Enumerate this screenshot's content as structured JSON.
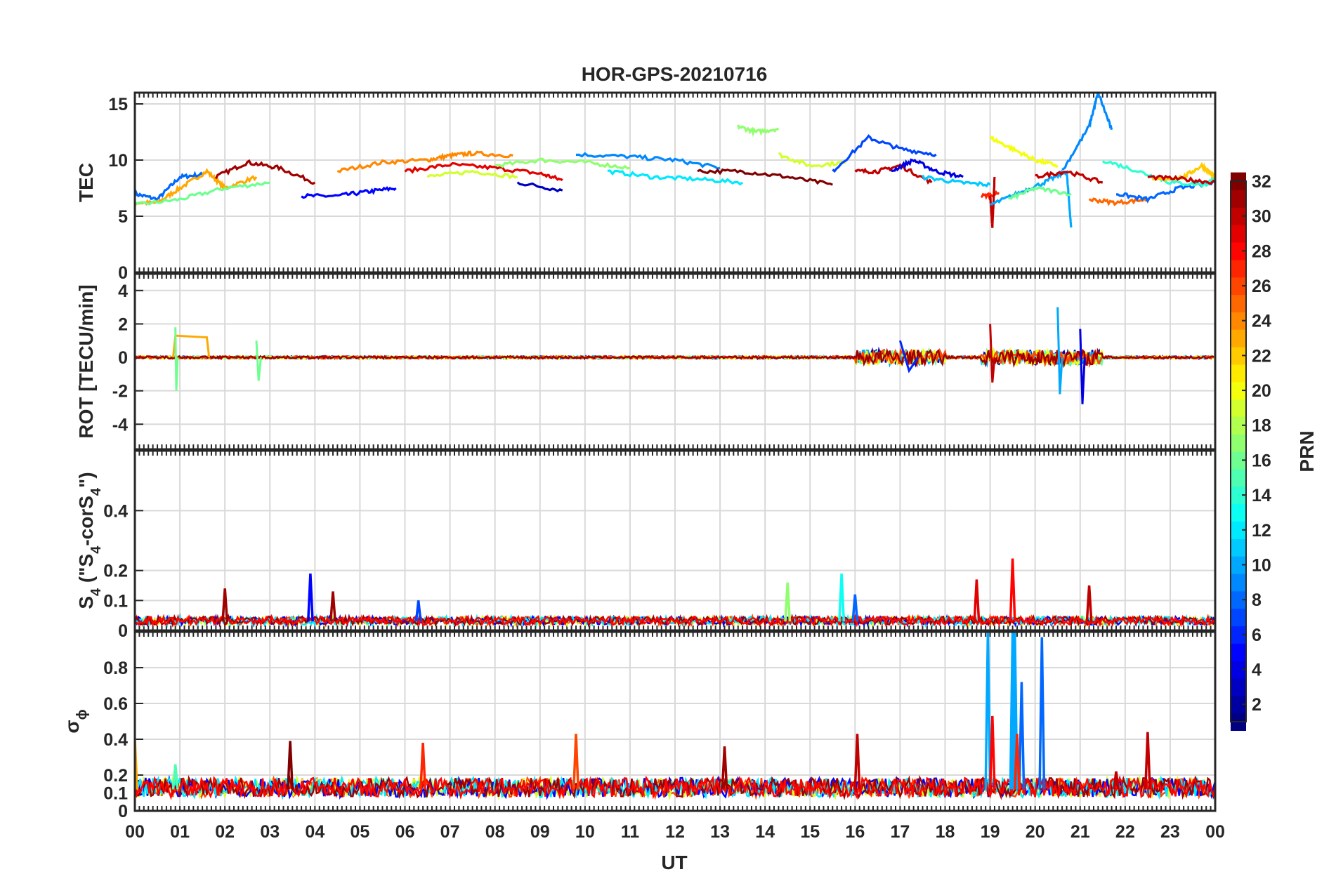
{
  "chart_data": {
    "type": "line",
    "title": "HOR-GPS-20210716",
    "xlabel": "UT",
    "x_ticks": [
      "00",
      "01",
      "02",
      "03",
      "04",
      "05",
      "06",
      "07",
      "08",
      "09",
      "10",
      "11",
      "12",
      "13",
      "14",
      "15",
      "16",
      "17",
      "18",
      "19",
      "20",
      "21",
      "22",
      "23",
      "00"
    ],
    "xlim": [
      0,
      24
    ],
    "grid": true,
    "colorbar": {
      "label": "PRN",
      "range": [
        1,
        32
      ],
      "ticks": [
        "2",
        "4",
        "6",
        "8",
        "10",
        "12",
        "14",
        "16",
        "18",
        "20",
        "22",
        "24",
        "26",
        "28",
        "30",
        "32"
      ],
      "colormap": "jet"
    },
    "panels": [
      {
        "id": "tec",
        "ylabel": "TEC",
        "ylim": [
          0,
          16
        ],
        "yticks": [
          0,
          5,
          10,
          15
        ],
        "ytick_labels": [
          "0",
          "5",
          "10",
          "15"
        ]
      },
      {
        "id": "rot",
        "ylabel": "ROT [TECU/min]",
        "ylim": [
          -5.5,
          5
        ],
        "yticks": [
          -4,
          -2,
          0,
          2,
          4
        ],
        "ytick_labels": [
          "-4",
          "-2",
          "0",
          "2",
          "4"
        ]
      },
      {
        "id": "s4",
        "ylabel_parts": [
          "S",
          "4",
          " (\"S",
          "4",
          "-corS",
          "4",
          "\")"
        ],
        "ylim": [
          0,
          0.6
        ],
        "yticks": [
          0,
          0.1,
          0.2,
          0.4
        ],
        "ytick_labels": [
          "0",
          "0.1",
          "0.2",
          "0.4"
        ]
      },
      {
        "id": "sigma",
        "ylabel_parts": [
          "σ",
          "ϕ"
        ],
        "ylim": [
          0,
          1
        ],
        "yticks": [
          0,
          0.1,
          0.2,
          0.4,
          0.6,
          0.8
        ],
        "ytick_labels": [
          "0",
          "0.1",
          "0.2",
          "0.4",
          "0.6",
          "0.8"
        ]
      }
    ],
    "tec_series": [
      {
        "prn": 8,
        "x": [
          0,
          0.5,
          1,
          1.5
        ],
        "y": [
          7,
          6.5,
          8.5,
          8.7
        ]
      },
      {
        "prn": 23,
        "x": [
          0,
          0.5,
          1,
          1.6,
          2,
          2.7
        ],
        "y": [
          6.2,
          6.2,
          7.5,
          9,
          7.5,
          8.5
        ]
      },
      {
        "prn": 16,
        "x": [
          0,
          1,
          2,
          3
        ],
        "y": [
          6,
          6.5,
          7.5,
          8
        ]
      },
      {
        "prn": 31,
        "x": [
          1.8,
          2.5,
          3.2,
          4
        ],
        "y": [
          8.5,
          9.8,
          9.3,
          8
        ]
      },
      {
        "prn": 5,
        "x": [
          3.7,
          4.5,
          5.2,
          5.8
        ],
        "y": [
          6.8,
          6.8,
          7.2,
          7.5
        ]
      },
      {
        "prn": 24,
        "x": [
          4.5,
          5.5,
          6.5,
          7,
          7.5,
          8.4
        ],
        "y": [
          9,
          9.8,
          10,
          10.4,
          10.6,
          10.4
        ]
      },
      {
        "prn": 19,
        "x": [
          6.5,
          7.5,
          8.5
        ],
        "y": [
          8.5,
          9,
          8.5
        ]
      },
      {
        "prn": 29,
        "x": [
          6,
          7,
          8,
          9,
          9.5
        ],
        "y": [
          9,
          9.6,
          9.3,
          8.8,
          8.2
        ]
      },
      {
        "prn": 3,
        "x": [
          8.5,
          9.5
        ],
        "y": [
          8,
          7.3
        ]
      },
      {
        "prn": 9,
        "x": [
          9.8,
          11,
          12,
          13
        ],
        "y": [
          10.5,
          10.3,
          10,
          9.3
        ]
      },
      {
        "prn": 17,
        "x": [
          8,
          9,
          10,
          11
        ],
        "y": [
          9.5,
          10,
          9.8,
          9.3
        ]
      },
      {
        "prn": 12,
        "x": [
          10.5,
          11.5,
          12.5,
          13.5
        ],
        "y": [
          9,
          8.5,
          8.3,
          8
        ]
      },
      {
        "prn": 32,
        "x": [
          12.5,
          13.5,
          14.5,
          15.5
        ],
        "y": [
          9,
          9,
          8.5,
          7.8
        ]
      },
      {
        "prn": 17,
        "x": [
          13.4,
          13.8,
          14.3
        ],
        "y": [
          13,
          12.5,
          12.8
        ]
      },
      {
        "prn": 19,
        "x": [
          14.3,
          15,
          15.8
        ],
        "y": [
          10.5,
          9.5,
          9.8
        ]
      },
      {
        "prn": 7,
        "x": [
          15.5,
          16.3,
          17,
          17.8
        ],
        "y": [
          9,
          12,
          11,
          10.5
        ]
      },
      {
        "prn": 30,
        "x": [
          16,
          16.5,
          17,
          17.7
        ],
        "y": [
          9,
          9,
          9.5,
          8
        ]
      },
      {
        "prn": 4,
        "x": [
          16.8,
          17.3,
          17.8,
          18.4
        ],
        "y": [
          9,
          10,
          9,
          8.5
        ]
      },
      {
        "prn": 11,
        "x": [
          17.5,
          18.3,
          19
        ],
        "y": [
          8.5,
          8,
          7.8
        ]
      },
      {
        "prn": 27,
        "x": [
          18.8,
          19.2
        ],
        "y": [
          6.8,
          7
        ]
      },
      {
        "prn": 30,
        "x": [
          19,
          19.05,
          19.1
        ],
        "y": [
          7,
          4,
          8.5
        ]
      },
      {
        "prn": 10,
        "x": [
          19,
          19.6,
          20.2,
          20.7,
          20.8
        ],
        "y": [
          6,
          7,
          8,
          9,
          4
        ]
      },
      {
        "prn": 20,
        "x": [
          19,
          19.5,
          20,
          20.5
        ],
        "y": [
          12,
          11,
          10,
          9.5
        ]
      },
      {
        "prn": 16,
        "x": [
          19.4,
          20,
          20.8
        ],
        "y": [
          6.5,
          7.5,
          7
        ]
      },
      {
        "prn": 9,
        "x": [
          20.6,
          21.2,
          21.4,
          21.7
        ],
        "y": [
          9,
          13,
          16,
          12.7
        ]
      },
      {
        "prn": 30,
        "x": [
          20,
          20.7,
          21.5
        ],
        "y": [
          8.5,
          9,
          8
        ]
      },
      {
        "prn": 25,
        "x": [
          21.2,
          21.8,
          22.5
        ],
        "y": [
          6.5,
          6.2,
          6.5
        ]
      },
      {
        "prn": 8,
        "x": [
          21.8,
          22.5,
          23.2,
          24
        ],
        "y": [
          7,
          6.5,
          7.5,
          8
        ]
      },
      {
        "prn": 14,
        "x": [
          21.5,
          22.3,
          23,
          23.8,
          24
        ],
        "y": [
          10,
          9,
          8,
          7.8,
          8.5
        ]
      },
      {
        "prn": 22,
        "x": [
          22.6,
          23.3,
          23.7,
          24
        ],
        "y": [
          8.2,
          8.5,
          9.5,
          8.5
        ]
      },
      {
        "prn": 30,
        "x": [
          22.5,
          23.3,
          24
        ],
        "y": [
          8.5,
          8.3,
          8
        ]
      }
    ],
    "rot_series": [
      {
        "prn": 23,
        "x": [
          0.85,
          0.9,
          1.6,
          1.65
        ],
        "y": [
          0,
          1.3,
          1.2,
          0
        ]
      },
      {
        "prn": 16,
        "x": [
          0.9,
          0.92,
          0.95
        ],
        "y": [
          1.8,
          -2,
          0
        ]
      },
      {
        "prn": 16,
        "x": [
          2.7,
          2.75,
          2.8
        ],
        "y": [
          1,
          -1.4,
          0
        ]
      },
      {
        "prn": 30,
        "x": [
          19,
          19.05,
          19.1
        ],
        "y": [
          2,
          -1.5,
          0
        ]
      },
      {
        "prn": 10,
        "x": [
          20.5,
          20.55,
          20.6
        ],
        "y": [
          3,
          -2.2,
          0
        ]
      },
      {
        "prn": 4,
        "x": [
          21,
          21.05,
          21.1
        ],
        "y": [
          1.7,
          -2.8,
          0
        ]
      },
      {
        "prn": 6,
        "x": [
          17,
          17.2,
          17.4
        ],
        "y": [
          1,
          -0.8,
          0
        ]
      }
    ],
    "s4_baseline": 0.03,
    "s4_spikes": [
      {
        "prn": 31,
        "x": 2.0,
        "y": 0.14
      },
      {
        "prn": 5,
        "x": 3.9,
        "y": 0.19
      },
      {
        "prn": 31,
        "x": 4.4,
        "y": 0.13
      },
      {
        "prn": 7,
        "x": 6.3,
        "y": 0.1
      },
      {
        "prn": 13,
        "x": 15.7,
        "y": 0.19
      },
      {
        "prn": 17,
        "x": 14.5,
        "y": 0.16
      },
      {
        "prn": 29,
        "x": 18.7,
        "y": 0.17
      },
      {
        "prn": 28,
        "x": 19.5,
        "y": 0.24
      },
      {
        "prn": 30,
        "x": 21.2,
        "y": 0.15
      },
      {
        "prn": 8,
        "x": 16.0,
        "y": 0.12
      }
    ],
    "sigma_baseline": 0.12,
    "sigma_spikes": [
      {
        "prn": 23,
        "x": 0.0,
        "y": 0.4
      },
      {
        "prn": 15,
        "x": 0.9,
        "y": 0.26
      },
      {
        "prn": 32,
        "x": 3.45,
        "y": 0.39
      },
      {
        "prn": 27,
        "x": 6.4,
        "y": 0.38
      },
      {
        "prn": 26,
        "x": 9.8,
        "y": 0.43
      },
      {
        "prn": 31,
        "x": 13.1,
        "y": 0.36
      },
      {
        "prn": 30,
        "x": 16.05,
        "y": 0.43
      },
      {
        "prn": 10,
        "x": 18.95,
        "y": 1.0
      },
      {
        "prn": 28,
        "x": 19.05,
        "y": 0.53
      },
      {
        "prn": 10,
        "x": 19.5,
        "y": 1.0
      },
      {
        "prn": 10,
        "x": 19.55,
        "y": 1.0
      },
      {
        "prn": 8,
        "x": 19.7,
        "y": 0.72
      },
      {
        "prn": 27,
        "x": 19.6,
        "y": 0.43
      },
      {
        "prn": 8,
        "x": 20.15,
        "y": 0.97
      },
      {
        "prn": 30,
        "x": 22.5,
        "y": 0.44
      },
      {
        "prn": 30,
        "x": 21.8,
        "y": 0.22
      }
    ]
  }
}
